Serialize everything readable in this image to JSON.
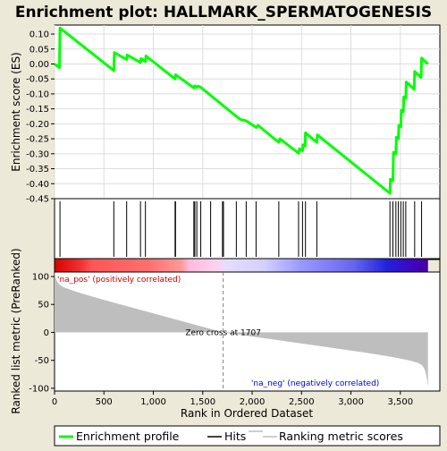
{
  "chart_data": {
    "type": "line",
    "title": "Enrichment plot: HALLMARK_SPERMATOGENESIS",
    "xlabel": "Rank in Ordered Dataset",
    "ylabel_top": "Enrichment score (ES)",
    "ylabel_bottom": "Ranked list metric (PreRanked)",
    "x_range": [
      0,
      3900
    ],
    "x_ticks": [
      0,
      500,
      1000,
      1500,
      2000,
      2500,
      3000,
      3500
    ],
    "x_tick_labels": [
      "0",
      "500",
      "1,000",
      "1,500",
      "2,000",
      "2,500",
      "3,000",
      "3,500"
    ],
    "es_range": [
      -0.45,
      0.13
    ],
    "es_ticks": [
      0.1,
      0.05,
      0.0,
      -0.05,
      -0.1,
      -0.15,
      -0.2,
      -0.25,
      -0.3,
      -0.35,
      -0.4,
      -0.45
    ],
    "es_tick_labels": [
      "0.10",
      "0.05",
      "0.00",
      "-0.05",
      "-0.10",
      "-0.15",
      "-0.20",
      "-0.25",
      "-0.30",
      "-0.35",
      "-0.40",
      "-0.45"
    ],
    "metric_range": [
      -105,
      108
    ],
    "metric_ticks": [
      100,
      50,
      0,
      -50,
      -100
    ],
    "metric_tick_labels": [
      "100",
      "50",
      "0",
      "-50",
      "-100"
    ],
    "n_genes": 3780,
    "zero_cross": 1707,
    "zero_cross_label": "Zero cross at 1707",
    "pos_label": "'na_pos' (positively correlated)",
    "neg_label": "'na_neg' (negatively correlated)",
    "enrichment_profile": [
      [
        0,
        0.0
      ],
      [
        50,
        -0.012
      ],
      [
        55,
        0.12
      ],
      [
        600,
        -0.022
      ],
      [
        605,
        0.038
      ],
      [
        730,
        0.015
      ],
      [
        735,
        0.03
      ],
      [
        870,
        0.005
      ],
      [
        875,
        0.018
      ],
      [
        920,
        0.008
      ],
      [
        925,
        0.027
      ],
      [
        1220,
        -0.05
      ],
      [
        1225,
        -0.036
      ],
      [
        1410,
        -0.08
      ],
      [
        1420,
        -0.073
      ],
      [
        1440,
        -0.078
      ],
      [
        1450,
        -0.074
      ],
      [
        1480,
        -0.078
      ],
      [
        1840,
        -0.175
      ],
      [
        1880,
        -0.185
      ],
      [
        1940,
        -0.19
      ],
      [
        2040,
        -0.212
      ],
      [
        2060,
        -0.205
      ],
      [
        2270,
        -0.262
      ],
      [
        2280,
        -0.25
      ],
      [
        2470,
        -0.298
      ],
      [
        2480,
        -0.283
      ],
      [
        2510,
        -0.29
      ],
      [
        2515,
        -0.27
      ],
      [
        2535,
        -0.275
      ],
      [
        2540,
        -0.23
      ],
      [
        2655,
        -0.262
      ],
      [
        2660,
        -0.237
      ],
      [
        3395,
        -0.432
      ],
      [
        3400,
        -0.385
      ],
      [
        3425,
        -0.39
      ],
      [
        3430,
        -0.295
      ],
      [
        3455,
        -0.3
      ],
      [
        3460,
        -0.245
      ],
      [
        3480,
        -0.25
      ],
      [
        3485,
        -0.205
      ],
      [
        3505,
        -0.21
      ],
      [
        3510,
        -0.155
      ],
      [
        3530,
        -0.16
      ],
      [
        3535,
        -0.11
      ],
      [
        3555,
        -0.115
      ],
      [
        3560,
        -0.06
      ],
      [
        3640,
        -0.085
      ],
      [
        3645,
        -0.025
      ],
      [
        3710,
        -0.045
      ],
      [
        3715,
        0.02
      ],
      [
        3780,
        0.0
      ]
    ],
    "hits": [
      55,
      600,
      730,
      870,
      920,
      1220,
      1225,
      1410,
      1420,
      1440,
      1480,
      1580,
      1700,
      1710,
      1840,
      1940,
      2040,
      2270,
      2470,
      2510,
      2540,
      2655,
      3395,
      3425,
      3455,
      3480,
      3505,
      3530,
      3555,
      3645,
      3715
    ],
    "legend": [
      "Enrichment profile",
      "Hits",
      "Ranking metric scores"
    ],
    "colors": {
      "profile": "#00FF00",
      "hits": "#000000",
      "metric_fill": "#BEBEBE",
      "zero_line": "#808080",
      "pos_text": "#CC0000",
      "neg_text": "#0000CC",
      "background": "#ECE9D8"
    }
  }
}
